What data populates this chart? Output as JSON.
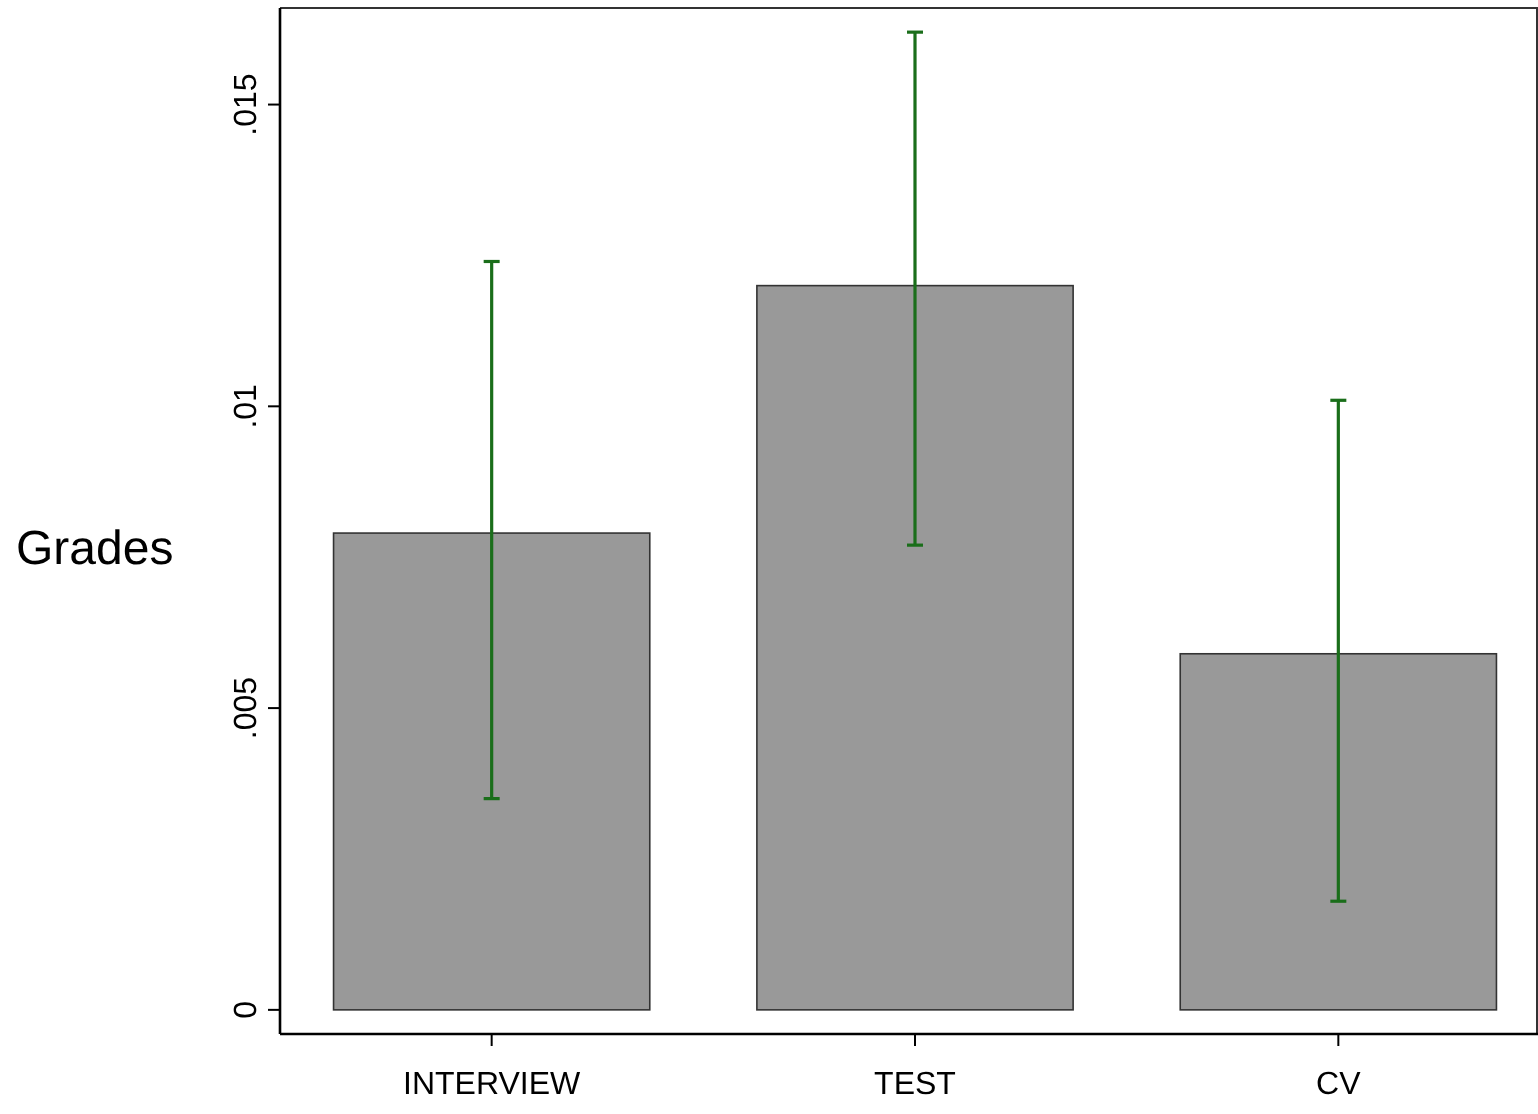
{
  "chart_data": {
    "type": "bar",
    "ylabel": "Grades",
    "categories": [
      "INTERVIEW",
      "TEST",
      "CV"
    ],
    "values": [
      0.0079,
      0.012,
      0.0059
    ],
    "color": "#999999",
    "errors": [
      [
        0.0035,
        0.0124
      ],
      [
        0.0077,
        0.0162
      ],
      [
        0.0018,
        0.0101
      ]
    ],
    "ylim": [
      -0.0004,
      0.0166
    ],
    "yticks": [
      {
        "value": 0,
        "label": "0"
      },
      {
        "value": 0.005,
        "label": ".005"
      },
      {
        "value": 0.01,
        "label": ".01"
      },
      {
        "value": 0.015,
        "label": ".015"
      }
    ],
    "grid": false
  }
}
